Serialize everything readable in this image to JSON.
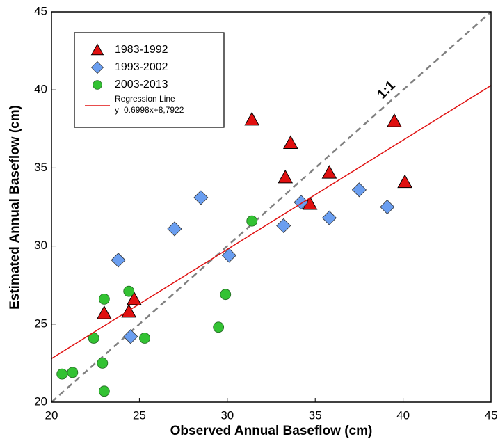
{
  "chart_data": {
    "type": "scatter",
    "xlabel": "Observed Annual Baseflow (cm)",
    "ylabel": "Estimated Annual Baseflow (cm)",
    "xlim": [
      20,
      45
    ],
    "ylim": [
      20,
      45
    ],
    "xticks": [
      20,
      25,
      30,
      35,
      40,
      45
    ],
    "yticks": [
      20,
      25,
      30,
      35,
      40,
      45
    ],
    "legend": "upper left",
    "series": [
      {
        "name": "1983-1992",
        "color": "#e01010",
        "marker": "triangle",
        "x": [
          23.0,
          24.4,
          24.7,
          31.4,
          33.6,
          33.3,
          34.7,
          35.8,
          39.5,
          40.1
        ],
        "values": [
          25.7,
          25.8,
          26.6,
          38.1,
          36.6,
          34.4,
          32.7,
          34.7,
          38.0,
          34.1
        ]
      },
      {
        "name": "1993-2002",
        "color": "#6a9ef0",
        "marker": "diamond",
        "x": [
          23.8,
          24.5,
          27.0,
          28.5,
          30.1,
          33.2,
          34.2,
          35.8,
          37.5,
          39.1
        ],
        "values": [
          29.1,
          24.2,
          31.1,
          33.1,
          29.4,
          31.3,
          32.8,
          31.8,
          33.6,
          32.5
        ]
      },
      {
        "name": "2003-2013",
        "color": "#33c233",
        "marker": "circle",
        "x": [
          20.6,
          21.2,
          22.4,
          22.9,
          23.0,
          23.0,
          24.4,
          25.3,
          29.5,
          29.9,
          31.4
        ],
        "values": [
          21.8,
          21.9,
          24.1,
          22.5,
          20.7,
          26.6,
          27.1,
          24.1,
          24.8,
          26.9,
          31.6
        ]
      },
      {
        "name": "Regression Line",
        "equation": "y=0.6998x+8,7922",
        "color": "#e01010",
        "marker": "line",
        "x": [
          20,
          45
        ],
        "values": [
          22.79,
          40.28
        ]
      }
    ],
    "reference_line": {
      "label": "1:1",
      "color": "#808080",
      "dash": true,
      "x": [
        20,
        45
      ],
      "values": [
        20,
        45
      ]
    }
  }
}
